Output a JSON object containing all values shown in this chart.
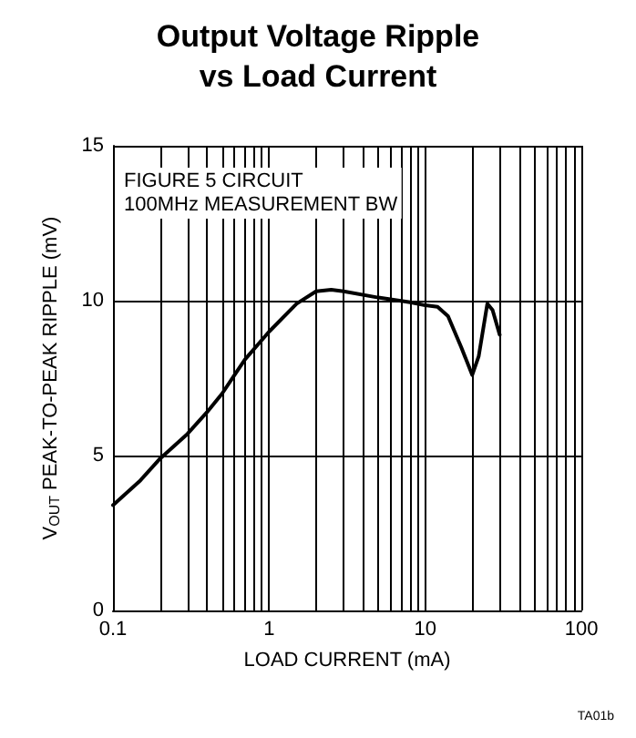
{
  "chart_data": {
    "type": "line",
    "title": "Output Voltage Ripple\nvs Load Current",
    "xlabel": "LOAD CURRENT (mA)",
    "ylabel": "V$_{OUT}$ PEAK-TO-PEAK RIPPLE (mV)",
    "x": [
      0.1,
      0.15,
      0.2,
      0.3,
      0.4,
      0.5,
      0.7,
      1,
      1.5,
      2,
      2.5,
      3,
      5,
      8,
      10,
      12,
      14,
      17,
      20,
      22,
      25,
      27,
      30
    ],
    "series": [
      {
        "color": "#000000",
        "values": [
          3.4,
          4.2,
          4.9,
          5.7,
          6.4,
          7.0,
          8.1,
          9.0,
          9.9,
          10.3,
          10.35,
          10.3,
          10.1,
          9.95,
          9.85,
          9.8,
          9.5,
          8.5,
          7.6,
          8.2,
          9.9,
          9.7,
          8.9
        ]
      }
    ],
    "xlim": [
      0.1,
      100
    ],
    "xticks": [
      0.1,
      1,
      10,
      100
    ],
    "ylim": [
      0,
      15
    ],
    "yticks": [
      0,
      5,
      10,
      15
    ],
    "log": "x",
    "grid": true,
    "marker": "none",
    "line_style": "solid",
    "annotations": [
      "FIGURE 5 CIRCUIT\n100MHz MEASUREMENT BW",
      "TA01b"
    ]
  }
}
